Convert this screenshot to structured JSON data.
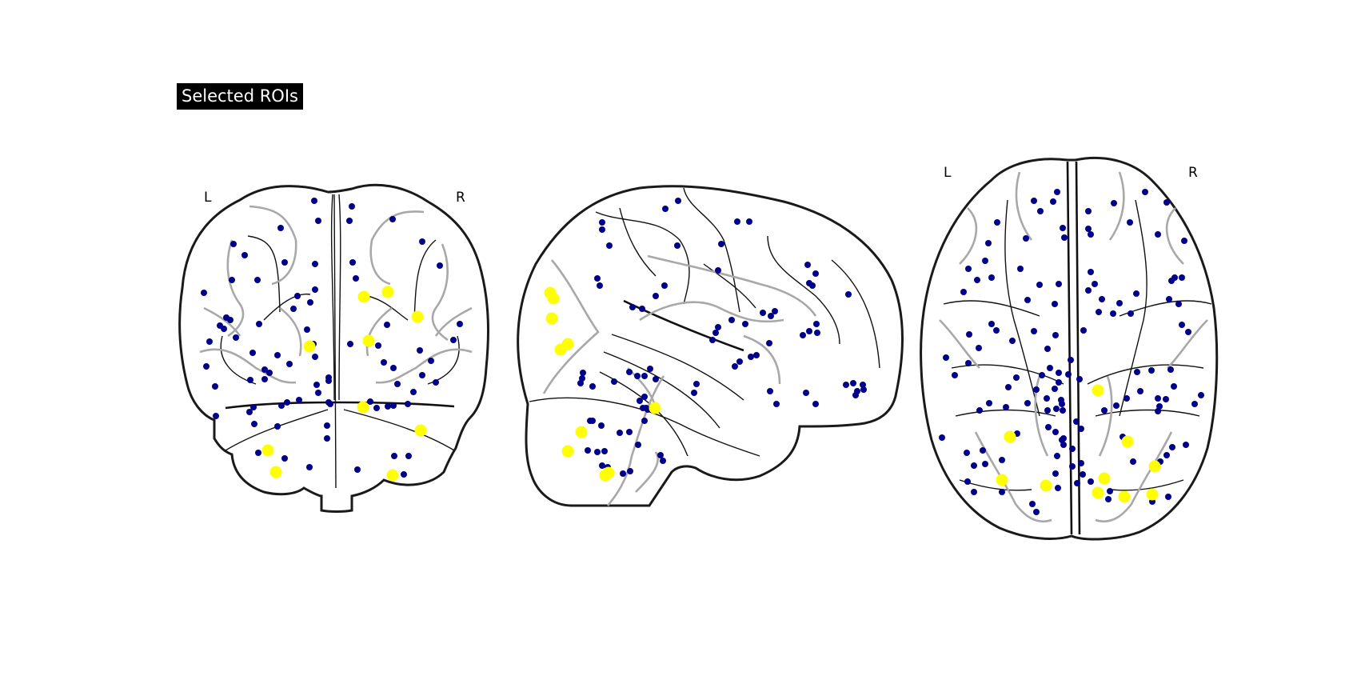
{
  "title": "Selected ROIs",
  "colors": {
    "roi_other": "#00008b",
    "roi_selected": "#ffff00",
    "title_bg": "#000000",
    "title_text": "#ffffff"
  },
  "views": {
    "coronal": {
      "left_label": "L",
      "right_label": "R"
    },
    "axial": {
      "left_label": "L",
      "right_label": "R"
    }
  }
}
